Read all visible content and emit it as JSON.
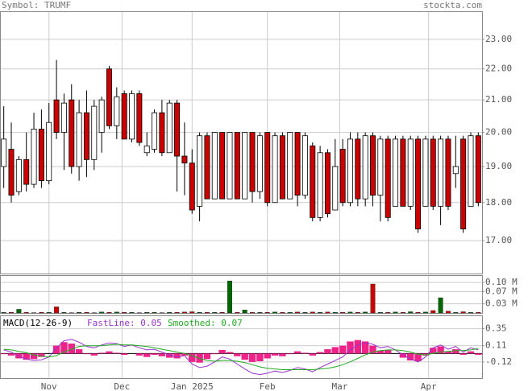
{
  "header": {
    "symbol": "Symbol: TRUMF",
    "site": "stockta.com"
  },
  "chart_data": [
    {
      "type": "candlestick",
      "log_scale": true,
      "grid": true,
      "ylim": [
        16.18,
        23.99
      ],
      "yticks": [
        {
          "value": 23,
          "label": "23.00"
        },
        {
          "value": 22,
          "label": "22.00"
        },
        {
          "value": 21,
          "label": "21.00"
        },
        {
          "value": 20,
          "label": "20.00"
        },
        {
          "value": 19,
          "label": "19.00"
        },
        {
          "value": 18,
          "label": "18.00"
        },
        {
          "value": 17,
          "label": "17.00"
        }
      ],
      "up_color": "#ffffff",
      "down_color": "#cc0000",
      "open": [
        19.0,
        19.5,
        18.3,
        19.2,
        18.5,
        20.1,
        18.6,
        21.0,
        20.0,
        21.0,
        19.0,
        20.6,
        19.2,
        20.0,
        22.0,
        20.2,
        21.2,
        19.8,
        21.2,
        19.4,
        19.5,
        20.6,
        19.4,
        20.9,
        19.3,
        19.1,
        17.9,
        19.9,
        18.1,
        20.0,
        18.1,
        20.0,
        18.1,
        20.0,
        18.3,
        20.0,
        18.0,
        19.9,
        18.1,
        20.0,
        18.2,
        19.6,
        17.6,
        19.4,
        17.8,
        19.5,
        18.0,
        19.8,
        18.1,
        19.9,
        18.2,
        19.8,
        17.9,
        19.8,
        17.9,
        19.8,
        17.9,
        19.8,
        17.9,
        19.8,
        18.8,
        19.8,
        17.9,
        19.9
      ],
      "high": [
        20.8,
        20.3,
        19.3,
        20.0,
        20.6,
        20.7,
        20.9,
        22.3,
        21.2,
        21.5,
        21.0,
        21.3,
        21.0,
        21.1,
        22.1,
        21.4,
        21.3,
        21.3,
        21.3,
        20.0,
        20.7,
        21.0,
        21.0,
        21.0,
        20.3,
        19.5,
        20.0,
        20.0,
        20.0,
        20.0,
        20.0,
        20.0,
        20.0,
        20.0,
        20.0,
        20.0,
        20.0,
        20.0,
        20.0,
        20.0,
        20.0,
        19.7,
        19.6,
        19.5,
        19.8,
        19.8,
        20.0,
        20.0,
        20.0,
        20.0,
        19.9,
        19.9,
        19.9,
        19.9,
        19.9,
        19.9,
        19.9,
        19.9,
        19.9,
        19.9,
        19.9,
        19.9,
        20.0,
        20.0
      ],
      "low": [
        18.4,
        18.0,
        18.2,
        18.3,
        18.4,
        18.4,
        18.5,
        19.8,
        18.9,
        18.8,
        18.6,
        18.7,
        18.9,
        19.4,
        20.1,
        19.8,
        19.8,
        19.7,
        19.6,
        19.3,
        19.4,
        19.3,
        19.4,
        18.3,
        18.2,
        17.7,
        17.5,
        18.1,
        18.1,
        18.1,
        18.1,
        18.1,
        18.1,
        18.0,
        18.1,
        17.9,
        18.0,
        18.1,
        18.1,
        17.9,
        18.1,
        17.5,
        17.5,
        17.6,
        17.8,
        17.9,
        17.9,
        17.9,
        17.9,
        17.9,
        17.5,
        17.5,
        17.9,
        17.9,
        17.8,
        17.2,
        17.9,
        17.8,
        17.4,
        17.8,
        18.4,
        17.2,
        17.9,
        17.9
      ],
      "close": [
        19.8,
        18.2,
        19.2,
        18.5,
        20.1,
        18.6,
        20.3,
        20.0,
        20.9,
        19.0,
        20.6,
        19.2,
        20.8,
        21.0,
        20.2,
        21.1,
        19.8,
        21.2,
        19.7,
        19.6,
        20.6,
        19.4,
        20.9,
        19.3,
        19.1,
        17.8,
        19.9,
        18.1,
        20.0,
        18.1,
        20.0,
        18.1,
        20.0,
        18.3,
        19.9,
        18.0,
        19.9,
        18.1,
        20.0,
        18.2,
        19.9,
        17.6,
        19.4,
        17.7,
        19.0,
        18.0,
        19.8,
        18.1,
        19.9,
        18.2,
        19.8,
        17.6,
        19.8,
        17.9,
        19.8,
        17.3,
        19.8,
        17.9,
        19.8,
        17.9,
        19.0,
        17.3,
        19.9,
        18.0
      ]
    },
    {
      "type": "bar",
      "ylim": [
        0,
        0.124
      ],
      "yticks": [
        {
          "value": 0.1,
          "label": "0.10 M"
        },
        {
          "value": 0.07,
          "label": "0.07 M"
        },
        {
          "value": 0.03,
          "label": "0.03 M"
        }
      ],
      "up_color": "#006600",
      "down_color": "#cc0000",
      "values": [
        0.002,
        0.002,
        0.012,
        0.002,
        0.001,
        0.002,
        0.002,
        0.02,
        0.002,
        0.001,
        0.002,
        0.002,
        0.001,
        0.003,
        0.002,
        0.003,
        0.002,
        0.002,
        0.001,
        0.002,
        0.002,
        0.001,
        0.002,
        0.002,
        0.003,
        0.004,
        0.002,
        0.002,
        0.002,
        0.002,
        0.105,
        0.002,
        0.01,
        0.002,
        0.002,
        0.002,
        0.003,
        0.002,
        0.002,
        0.003,
        0.002,
        0.003,
        0.002,
        0.003,
        0.002,
        0.002,
        0.003,
        0.002,
        0.003,
        0.095,
        0.002,
        0.002,
        0.003,
        0.002,
        0.004,
        0.002,
        0.003,
        0.008,
        0.05,
        0.006,
        0.002,
        0.004,
        0.002,
        0.002
      ]
    },
    {
      "type": "macd",
      "title": "MACD(12-26-9)",
      "ylim": [
        -0.35,
        0.54
      ],
      "yticks": [
        0.35,
        0.11,
        -0.12
      ],
      "xticks": [
        {
          "value": 6,
          "label": "Nov"
        },
        {
          "value": 15.7,
          "label": "Dec"
        },
        {
          "value": 25,
          "label": "Jan 2025"
        },
        {
          "value": 35,
          "label": "Feb"
        },
        {
          "value": 44.6,
          "label": "Mar"
        },
        {
          "value": 56.4,
          "label": "Apr"
        }
      ],
      "series": [
        {
          "color": "#ee2288",
          "values": [
            -0.01,
            -0.03,
            -0.07,
            -0.09,
            -0.08,
            -0.05,
            0.0,
            0.11,
            0.16,
            0.14,
            0.06,
            -0.01,
            -0.03,
            0.01,
            0.03,
            0.01,
            -0.02,
            0.0,
            -0.03,
            -0.05,
            -0.02,
            -0.04,
            -0.06,
            -0.07,
            -0.03,
            -0.12,
            -0.13,
            -0.08,
            -0.01,
            0.05,
            0.02,
            -0.04,
            -0.09,
            -0.12,
            -0.11,
            -0.07,
            -0.03,
            -0.04,
            -0.01,
            0.03,
            0.01,
            -0.03,
            0.02,
            0.06,
            0.09,
            0.11,
            0.17,
            0.19,
            0.17,
            0.11,
            0.04,
            0.05,
            0.0,
            -0.06,
            -0.1,
            -0.11,
            -0.03,
            0.08,
            0.1,
            0.03,
            0.06,
            -0.02,
            0.03,
            -0.02
          ]
        },
        {
          "name": "FastLine: 0.05",
          "color": "#9933cc",
          "values": [
            0.05,
            0.02,
            -0.04,
            -0.08,
            -0.1,
            -0.09,
            -0.05,
            0.08,
            0.18,
            0.2,
            0.16,
            0.1,
            0.08,
            0.12,
            0.15,
            0.14,
            0.1,
            0.12,
            0.08,
            0.05,
            0.06,
            0.02,
            -0.02,
            -0.05,
            -0.03,
            -0.15,
            -0.2,
            -0.18,
            -0.12,
            -0.05,
            -0.08,
            -0.15,
            -0.22,
            -0.28,
            -0.3,
            -0.28,
            -0.25,
            -0.27,
            -0.24,
            -0.2,
            -0.22,
            -0.26,
            -0.2,
            -0.15,
            -0.1,
            -0.05,
            0.05,
            0.12,
            0.15,
            0.13,
            0.08,
            0.1,
            0.05,
            -0.02,
            -0.08,
            -0.12,
            -0.05,
            0.08,
            0.12,
            0.06,
            0.1,
            0.02,
            0.08,
            0.05
          ]
        },
        {
          "name": "Smoothed: 0.07",
          "color": "#22aa22",
          "values": [
            0.06,
            0.05,
            0.03,
            0.01,
            -0.02,
            -0.04,
            -0.05,
            -0.03,
            0.02,
            0.06,
            0.1,
            0.11,
            0.11,
            0.11,
            0.12,
            0.13,
            0.12,
            0.12,
            0.11,
            0.1,
            0.08,
            0.06,
            0.04,
            0.02,
            0.0,
            -0.03,
            -0.07,
            -0.1,
            -0.11,
            -0.1,
            -0.1,
            -0.11,
            -0.13,
            -0.16,
            -0.19,
            -0.21,
            -0.22,
            -0.23,
            -0.23,
            -0.23,
            -0.23,
            -0.23,
            -0.22,
            -0.21,
            -0.19,
            -0.16,
            -0.12,
            -0.07,
            -0.02,
            0.02,
            0.04,
            0.05,
            0.05,
            0.04,
            0.02,
            -0.01,
            -0.02,
            0.0,
            0.02,
            0.03,
            0.04,
            0.04,
            0.05,
            0.07
          ]
        }
      ]
    }
  ]
}
